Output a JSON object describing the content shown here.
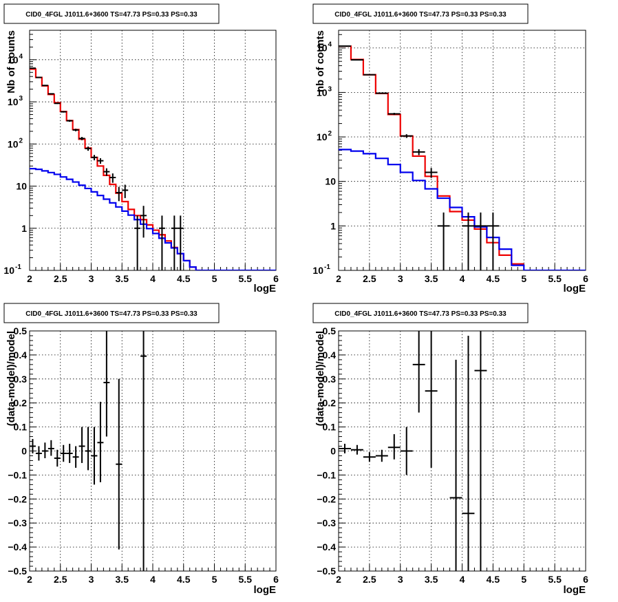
{
  "colors": {
    "data": "#000000",
    "model_total": "#ee0000",
    "model_source": "#0000ee",
    "grid": "#000000"
  },
  "chart_data": [
    {
      "type": "line",
      "title": "CID0_4FGL J1011.6+3600 TS=47.73 PS=0.33 PS=0.33",
      "xlabel": "logE",
      "ylabel": "Nb of counts",
      "xlim": [
        2,
        6
      ],
      "ylim": [
        0.1,
        50000
      ],
      "log_y": true,
      "grid": true,
      "x_ticks": [
        "2",
        "2.5",
        "3",
        "3.5",
        "4",
        "4.5",
        "5",
        "5.5",
        "6"
      ],
      "y_ticks": [
        {
          "v": 0.1,
          "base": "10",
          "exp": "-1"
        },
        {
          "v": 1,
          "base": "1",
          "exp": ""
        },
        {
          "v": 10,
          "base": "10",
          "exp": ""
        },
        {
          "v": 100,
          "base": "10",
          "exp": "2"
        },
        {
          "v": 1000,
          "base": "10",
          "exp": "3"
        },
        {
          "v": 10000,
          "base": "10",
          "exp": "4"
        }
      ],
      "step_width": 0.1,
      "series": [
        {
          "role": "model_total",
          "step_x": [
            2.0,
            2.1,
            2.2,
            2.3,
            2.4,
            2.5,
            2.6,
            2.7,
            2.8,
            2.9,
            3.0,
            3.1,
            3.2,
            3.3,
            3.4,
            3.5,
            3.6,
            3.7,
            3.8,
            3.9,
            4.0,
            4.1,
            4.2,
            4.3,
            4.4,
            4.5,
            4.6,
            4.7
          ],
          "values": [
            6000,
            3800,
            2400,
            1500,
            950,
            590,
            360,
            220,
            130,
            80,
            48,
            30,
            18,
            11,
            6.8,
            4.3,
            2.8,
            2.0,
            1.6,
            1.2,
            0.9,
            0.7,
            0.5,
            0.35,
            0.25,
            0.17,
            0.12,
            0.1
          ]
        },
        {
          "role": "model_source",
          "step_x": [
            2.0,
            2.1,
            2.2,
            2.3,
            2.4,
            2.5,
            2.6,
            2.7,
            2.8,
            2.9,
            3.0,
            3.1,
            3.2,
            3.3,
            3.4,
            3.5,
            3.6,
            3.7,
            3.8,
            3.9,
            4.0,
            4.1,
            4.2,
            4.3,
            4.4,
            4.5,
            4.6,
            4.7,
            4.8,
            4.9,
            5.0,
            5.1,
            5.2,
            5.3,
            5.4,
            5.5,
            5.6,
            5.7,
            5.8,
            5.9
          ],
          "values": [
            26,
            25,
            23,
            21,
            19,
            16.5,
            14.5,
            12.5,
            10.5,
            8.8,
            7.3,
            6.0,
            4.9,
            4.0,
            3.2,
            2.55,
            2.05,
            1.6,
            1.25,
            0.98,
            0.75,
            0.58,
            0.45,
            0.34,
            0.25,
            0.17,
            0.12,
            0.1,
            0.1,
            0.1,
            0.1,
            0.1,
            0.1,
            0.1,
            0.1,
            0.1,
            0.1,
            0.1,
            0.1,
            0.1
          ]
        },
        {
          "role": "data",
          "points": [
            {
              "x": 2.05,
              "y": 6300,
              "lo": 6200,
              "hi": 6400
            },
            {
              "x": 2.15,
              "y": 3800,
              "lo": 3740,
              "hi": 3860
            },
            {
              "x": 2.25,
              "y": 2450,
              "lo": 2400,
              "hi": 2500
            },
            {
              "x": 2.35,
              "y": 1550,
              "lo": 1510,
              "hi": 1590
            },
            {
              "x": 2.45,
              "y": 920,
              "lo": 890,
              "hi": 950
            },
            {
              "x": 2.55,
              "y": 580,
              "lo": 556,
              "hi": 604
            },
            {
              "x": 2.65,
              "y": 355,
              "lo": 336,
              "hi": 374
            },
            {
              "x": 2.75,
              "y": 215,
              "lo": 200,
              "hi": 230
            },
            {
              "x": 2.85,
              "y": 135,
              "lo": 123,
              "hi": 147
            },
            {
              "x": 2.95,
              "y": 78,
              "lo": 69,
              "hi": 87
            },
            {
              "x": 3.05,
              "y": 48,
              "lo": 41,
              "hi": 55
            },
            {
              "x": 3.15,
              "y": 40,
              "lo": 34,
              "hi": 46
            },
            {
              "x": 3.25,
              "y": 22,
              "lo": 17.5,
              "hi": 26.5
            },
            {
              "x": 3.35,
              "y": 16,
              "lo": 12,
              "hi": 20
            },
            {
              "x": 3.45,
              "y": 7,
              "lo": 4.4,
              "hi": 9.6
            },
            {
              "x": 3.55,
              "y": 8,
              "lo": 5.2,
              "hi": 10.8
            },
            {
              "x": 3.75,
              "y": 1,
              "lo": 0.1,
              "hi": 2
            },
            {
              "x": 3.85,
              "y": 2,
              "lo": 0.6,
              "hi": 3.4
            },
            {
              "x": 4.15,
              "y": 1,
              "lo": 0.1,
              "hi": 2
            },
            {
              "x": 4.35,
              "y": 1,
              "lo": 0.1,
              "hi": 2
            },
            {
              "x": 4.45,
              "y": 1,
              "lo": 0.1,
              "hi": 2
            }
          ]
        }
      ]
    },
    {
      "type": "line",
      "title": "CID0_4FGL J1011.6+3600 TS=47.73 PS=0.33 PS=0.33",
      "xlabel": "logE",
      "ylabel": "nb of counts",
      "xlim": [
        2,
        6
      ],
      "ylim": [
        0.1,
        25000
      ],
      "log_y": true,
      "grid": true,
      "x_ticks": [
        "2",
        "2.5",
        "3",
        "3.5",
        "4",
        "4.5",
        "5",
        "5.5",
        "6"
      ],
      "y_ticks": [
        {
          "v": 0.1,
          "base": "10",
          "exp": "-1"
        },
        {
          "v": 1,
          "base": "1",
          "exp": ""
        },
        {
          "v": 10,
          "base": "10",
          "exp": ""
        },
        {
          "v": 100,
          "base": "10",
          "exp": "2"
        },
        {
          "v": 1000,
          "base": "10",
          "exp": "3"
        },
        {
          "v": 10000,
          "base": "10",
          "exp": "4"
        }
      ],
      "step_width": 0.2,
      "series": [
        {
          "role": "model_total",
          "step_x": [
            2.0,
            2.2,
            2.4,
            2.6,
            2.8,
            3.0,
            3.2,
            3.4,
            3.6,
            3.8,
            4.0,
            4.2,
            4.4,
            4.6,
            4.8
          ],
          "values": [
            11000,
            5500,
            2500,
            950,
            320,
            105,
            37,
            13,
            4.7,
            2.1,
            1.35,
            0.85,
            0.42,
            0.22,
            0.14
          ]
        },
        {
          "role": "model_source",
          "step_x": [
            2.0,
            2.2,
            2.4,
            2.6,
            2.8,
            3.0,
            3.2,
            3.4,
            3.6,
            3.8,
            4.0,
            4.2,
            4.4,
            4.6,
            4.8,
            5.0,
            5.2,
            5.4,
            5.6,
            5.8
          ],
          "values": [
            52,
            48,
            42,
            33,
            24,
            16,
            10.5,
            6.8,
            4.2,
            2.6,
            1.6,
            0.95,
            0.55,
            0.3,
            0.13,
            0.1,
            0.1,
            0.1,
            0.1,
            0.1
          ]
        },
        {
          "role": "data",
          "points": [
            {
              "x": 2.1,
              "y": 11000,
              "lo": 10800,
              "hi": 11200
            },
            {
              "x": 2.3,
              "y": 5400,
              "lo": 5300,
              "hi": 5500
            },
            {
              "x": 2.5,
              "y": 2500,
              "lo": 2440,
              "hi": 2560
            },
            {
              "x": 2.7,
              "y": 960,
              "lo": 930,
              "hi": 990
            },
            {
              "x": 2.9,
              "y": 330,
              "lo": 312,
              "hi": 348
            },
            {
              "x": 3.1,
              "y": 105,
              "lo": 95,
              "hi": 115
            },
            {
              "x": 3.3,
              "y": 46,
              "lo": 39,
              "hi": 53
            },
            {
              "x": 3.5,
              "y": 16,
              "lo": 12,
              "hi": 20
            },
            {
              "x": 3.7,
              "y": 1,
              "lo": 0.1,
              "hi": 2
            },
            {
              "x": 4.1,
              "y": 1,
              "lo": 0.1,
              "hi": 2
            },
            {
              "x": 4.3,
              "y": 1,
              "lo": 0.1,
              "hi": 2
            },
            {
              "x": 4.5,
              "y": 1,
              "lo": 0.1,
              "hi": 2
            }
          ]
        }
      ]
    },
    {
      "type": "scatter",
      "title": "CID0_4FGL J1011.6+3600 TS=47.73 PS=0.33 PS=0.33",
      "xlabel": "logE",
      "ylabel": "(data-model)/model",
      "xlim": [
        2,
        6
      ],
      "ylim": [
        -0.5,
        0.5
      ],
      "grid": true,
      "x_ticks": [
        "2",
        "2.5",
        "3",
        "3.5",
        "4",
        "4.5",
        "5",
        "5.5",
        "6"
      ],
      "y_ticks": [
        "−0.5",
        "−0.4",
        "−0.3",
        "−0.2",
        "−0.1",
        "0",
        "0.1",
        "0.2",
        "0.3",
        "0.4",
        "0.5"
      ],
      "half_width": 0.05,
      "series": [
        {
          "role": "data",
          "points": [
            {
              "x": 2.05,
              "y": 0.02,
              "lo": -0.01,
              "hi": 0.05
            },
            {
              "x": 2.15,
              "y": -0.01,
              "lo": -0.04,
              "hi": 0.02
            },
            {
              "x": 2.25,
              "y": 0.0,
              "lo": -0.03,
              "hi": 0.035
            },
            {
              "x": 2.35,
              "y": 0.01,
              "lo": -0.02,
              "hi": 0.045
            },
            {
              "x": 2.45,
              "y": -0.03,
              "lo": -0.065,
              "hi": 0.005
            },
            {
              "x": 2.55,
              "y": -0.01,
              "lo": -0.045,
              "hi": 0.025
            },
            {
              "x": 2.65,
              "y": -0.01,
              "lo": -0.05,
              "hi": 0.03
            },
            {
              "x": 2.75,
              "y": -0.025,
              "lo": -0.07,
              "hi": 0.02
            },
            {
              "x": 2.85,
              "y": 0.02,
              "lo": -0.05,
              "hi": 0.1
            },
            {
              "x": 2.95,
              "y": 0.0,
              "lo": -0.08,
              "hi": 0.1
            },
            {
              "x": 3.05,
              "y": -0.02,
              "lo": -0.14,
              "hi": 0.1
            },
            {
              "x": 3.15,
              "y": 0.035,
              "lo": -0.13,
              "hi": 0.205
            },
            {
              "x": 3.25,
              "y": 0.285,
              "lo": 0.06,
              "hi": 0.5
            },
            {
              "x": 3.45,
              "y": -0.055,
              "lo": -0.41,
              "hi": 0.3
            },
            {
              "x": 3.85,
              "y": 0.395,
              "lo": -0.5,
              "hi": 0.5
            }
          ]
        }
      ]
    },
    {
      "type": "scatter",
      "title": "CID0_4FGL J1011.6+3600 TS=47.73 PS=0.33 PS=0.33",
      "xlabel": "logE",
      "ylabel": "(data-model)/model",
      "xlim": [
        2,
        6
      ],
      "ylim": [
        -0.5,
        0.5
      ],
      "grid": true,
      "x_ticks": [
        "2",
        "2.5",
        "3",
        "3.5",
        "4",
        "4.5",
        "5",
        "5.5",
        "6"
      ],
      "y_ticks": [
        "−0.5",
        "−0.4",
        "−0.3",
        "−0.2",
        "−0.1",
        "0",
        "0.1",
        "0.2",
        "0.3",
        "0.4",
        "0.5"
      ],
      "half_width": 0.1,
      "series": [
        {
          "role": "data",
          "points": [
            {
              "x": 2.1,
              "y": 0.01,
              "lo": -0.01,
              "hi": 0.03
            },
            {
              "x": 2.3,
              "y": 0.005,
              "lo": -0.015,
              "hi": 0.025
            },
            {
              "x": 2.5,
              "y": -0.025,
              "lo": -0.045,
              "hi": -0.005
            },
            {
              "x": 2.7,
              "y": -0.02,
              "lo": -0.045,
              "hi": 0.005
            },
            {
              "x": 2.9,
              "y": 0.015,
              "lo": -0.035,
              "hi": 0.07
            },
            {
              "x": 3.1,
              "y": 0.0,
              "lo": -0.1,
              "hi": 0.1
            },
            {
              "x": 3.3,
              "y": 0.36,
              "lo": 0.16,
              "hi": 0.5
            },
            {
              "x": 3.5,
              "y": 0.25,
              "lo": -0.07,
              "hi": 0.5
            },
            {
              "x": 3.9,
              "y": -0.195,
              "lo": -0.5,
              "hi": 0.38
            },
            {
              "x": 4.1,
              "y": -0.26,
              "lo": -0.5,
              "hi": 0.48
            },
            {
              "x": 4.3,
              "y": 0.335,
              "lo": -0.5,
              "hi": 0.5
            }
          ]
        }
      ]
    }
  ]
}
